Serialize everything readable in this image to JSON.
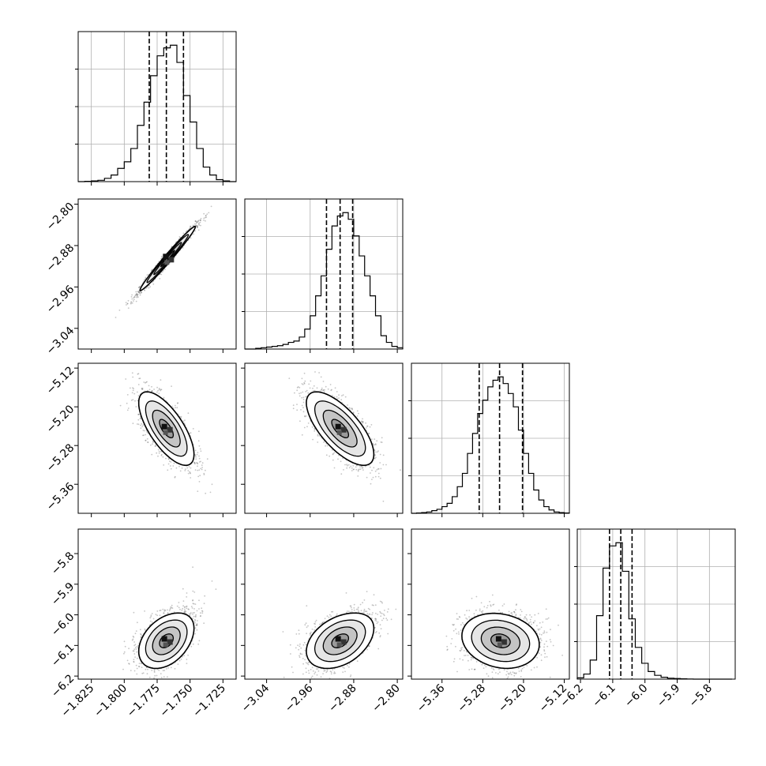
{
  "figure_title": "",
  "chart_data": {
    "type": "corner",
    "parameters": [
      {
        "name": "",
        "range": [
          -1.835,
          -1.715
        ],
        "ticks": [
          -1.825,
          -1.8,
          -1.775,
          -1.75,
          -1.725
        ],
        "tick_labels": [
          "−1.825",
          "−1.800",
          "−1.775",
          "−1.750",
          "−1.725"
        ]
      },
      {
        "name": "",
        "range": [
          -3.08,
          -2.79
        ],
        "ticks": [
          -3.04,
          -2.96,
          -2.88,
          -2.8
        ],
        "tick_labels": [
          "−3.04",
          "−2.96",
          "−2.88",
          "−2.80"
        ]
      },
      {
        "name": "",
        "range": [
          -5.42,
          -5.11
        ],
        "ticks": [
          -5.36,
          -5.28,
          -5.2,
          -5.12
        ],
        "tick_labels": [
          "−5.36",
          "−5.28",
          "−5.20",
          "−5.12"
        ]
      },
      {
        "name": "",
        "range": [
          -6.21,
          -5.72
        ],
        "ticks": [
          -6.2,
          -6.1,
          -6.0,
          -5.9,
          -5.8
        ],
        "tick_labels": [
          "−6.2",
          "−6.1",
          "−6.0",
          "−5.9",
          "−5.8"
        ]
      }
    ],
    "histograms": [
      {
        "parameter": 0,
        "quantiles": [
          -1.781,
          -1.768,
          -1.755
        ],
        "bins": [
          -1.835,
          -1.83,
          -1.825,
          -1.82,
          -1.815,
          -1.81,
          -1.805,
          -1.8,
          -1.795,
          -1.79,
          -1.785,
          -1.78,
          -1.775,
          -1.77,
          -1.765,
          -1.76,
          -1.755,
          -1.75,
          -1.745,
          -1.74,
          -1.735,
          -1.73,
          -1.725,
          -1.72,
          -1.715
        ],
        "counts": [
          0,
          0.5,
          1,
          2,
          5,
          10,
          20,
          30,
          50,
          85,
          120,
          160,
          190,
          202,
          206,
          180,
          130,
          90,
          50,
          22,
          10,
          3,
          1,
          0
        ]
      },
      {
        "parameter": 1,
        "quantiles": [
          -2.93,
          -2.905,
          -2.882
        ],
        "bins": [
          -3.08,
          -3.07,
          -3.06,
          -3.05,
          -3.04,
          -3.03,
          -3.02,
          -3.01,
          -3.0,
          -2.99,
          -2.98,
          -2.97,
          -2.96,
          -2.95,
          -2.94,
          -2.93,
          -2.92,
          -2.91,
          -2.9,
          -2.89,
          -2.88,
          -2.87,
          -2.86,
          -2.85,
          -2.84,
          -2.83,
          -2.82,
          -2.81,
          -2.8,
          -2.79
        ],
        "counts": [
          0,
          0,
          1,
          2,
          3,
          4,
          5,
          7,
          10,
          12,
          18,
          30,
          50,
          80,
          110,
          150,
          185,
          200,
          205,
          195,
          170,
          140,
          110,
          80,
          50,
          20,
          10,
          4,
          2
        ]
      },
      {
        "parameter": 2,
        "quantiles": [
          -5.287,
          -5.247,
          -5.202
        ],
        "bins": [
          -5.42,
          -5.41,
          -5.4,
          -5.39,
          -5.38,
          -5.37,
          -5.36,
          -5.35,
          -5.34,
          -5.33,
          -5.32,
          -5.31,
          -5.3,
          -5.29,
          -5.28,
          -5.27,
          -5.26,
          -5.25,
          -5.24,
          -5.23,
          -5.22,
          -5.21,
          -5.2,
          -5.19,
          -5.18,
          -5.17,
          -5.16,
          -5.15,
          -5.14,
          -5.13,
          -5.12,
          -5.11
        ],
        "counts": [
          0,
          0.5,
          1,
          2,
          4,
          6,
          10,
          15,
          25,
          40,
          60,
          90,
          120,
          150,
          170,
          190,
          200,
          205,
          195,
          180,
          160,
          125,
          90,
          60,
          35,
          20,
          10,
          5,
          2,
          1,
          0.5
        ]
      },
      {
        "parameter": 3,
        "quantiles": [
          -6.11,
          -6.075,
          -6.04
        ],
        "bins": [
          -6.21,
          -6.19,
          -6.17,
          -6.15,
          -6.13,
          -6.11,
          -6.09,
          -6.07,
          -6.05,
          -6.03,
          -6.01,
          -5.99,
          -5.97,
          -5.95,
          -5.93,
          -5.91,
          -5.89,
          -5.87,
          -5.85,
          -5.83,
          -5.81,
          -5.79,
          -5.77,
          -5.75,
          -5.73
        ],
        "counts": [
          2,
          8,
          30,
          100,
          175,
          210,
          215,
          170,
          95,
          50,
          25,
          12,
          6,
          3,
          1.5,
          1,
          0.5,
          0.2,
          0,
          0,
          0,
          0,
          0,
          0
        ]
      }
    ],
    "pairs": [
      {
        "x": 0,
        "y": 1,
        "center": [
          -1.767,
          -2.905
        ],
        "sigma": [
          0.0105,
          0.031
        ],
        "rho": 0.985
      },
      {
        "x": 0,
        "y": 2,
        "center": [
          -1.768,
          -5.245
        ],
        "sigma": [
          0.0105,
          0.038
        ],
        "rho": -0.7
      },
      {
        "x": 1,
        "y": 2,
        "center": [
          -2.905,
          -5.245
        ],
        "sigma": [
          0.031,
          0.038
        ],
        "rho": -0.7
      },
      {
        "x": 0,
        "y": 3,
        "center": [
          -1.768,
          -6.085
        ],
        "sigma": [
          0.0105,
          0.045
        ],
        "rho": 0.38,
        "skew": 0.06
      },
      {
        "x": 1,
        "y": 3,
        "center": [
          -2.905,
          -6.085
        ],
        "sigma": [
          0.031,
          0.045
        ],
        "rho": 0.38,
        "skew": 0.06
      },
      {
        "x": 2,
        "y": 3,
        "center": [
          -5.245,
          -6.085
        ],
        "sigma": [
          0.038,
          0.045
        ],
        "rho": -0.18,
        "skew": 0.04
      }
    ],
    "contour_levels": [
      0.5,
      1.0,
      1.5,
      2.0
    ],
    "grid": true,
    "colors": {
      "axes": "#000000",
      "grid": "#b0b0b0",
      "quantile": "#000000",
      "scatter": "#5a5a5a"
    }
  }
}
